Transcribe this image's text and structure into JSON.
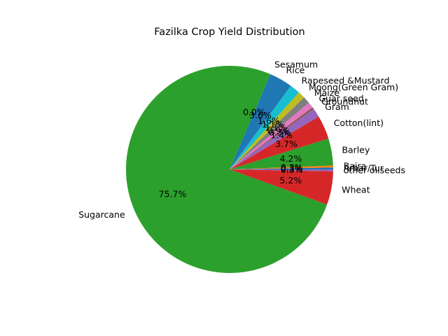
{
  "chart_data": {
    "type": "pie",
    "title": "Fazilka Crop Yield Distribution",
    "start_angle_deg": 0,
    "direction": "counterclockwise",
    "slices": [
      {
        "label": "Arhar/Tur",
        "value": 0.3,
        "pct_label": "0.3%",
        "color": "#1f77b4"
      },
      {
        "label": "Bajra",
        "value": 0.3,
        "pct_label": "0.3%",
        "color": "#ff7f0e"
      },
      {
        "label": "Barley",
        "value": 4.2,
        "pct_label": "4.2%",
        "color": "#2ca02c"
      },
      {
        "label": "Cotton(lint)",
        "value": 3.7,
        "pct_label": "3.7%",
        "color": "#d62728"
      },
      {
        "label": "Gram",
        "value": 1.4,
        "pct_label": "1.4%",
        "color": "#9467bd"
      },
      {
        "label": "Groundnut",
        "value": 0.3,
        "pct_label": "0.3%",
        "color": "#8c564b"
      },
      {
        "label": "Guar seed",
        "value": 0.9,
        "pct_label": "0.9%",
        "color": "#e377c2"
      },
      {
        "label": "Maize",
        "value": 1.1,
        "pct_label": "1.1%",
        "color": "#7f7f7f"
      },
      {
        "label": "Moong(Green Gram)",
        "value": 1.1,
        "pct_label": "1.1%",
        "color": "#bcbd22"
      },
      {
        "label": "Rapeseed &Mustard",
        "value": 1.6,
        "pct_label": "1.6%",
        "color": "#17becf"
      },
      {
        "label": "Rice",
        "value": 3.6,
        "pct_label": "3.6%",
        "color": "#1f77b4"
      },
      {
        "label": "Sesamum",
        "value": 0.0,
        "pct_label": "0.0%",
        "color": "#ff7f0e"
      },
      {
        "label": "Sugarcane",
        "value": 75.7,
        "pct_label": "75.7%",
        "color": "#2ca02c"
      },
      {
        "label": "Wheat",
        "value": 5.2,
        "pct_label": "5.2%",
        "color": "#d62728"
      },
      {
        "label": "other oilseeds",
        "value": 0.3,
        "pct_label": "0.3%",
        "color": "#9467bd"
      }
    ]
  }
}
